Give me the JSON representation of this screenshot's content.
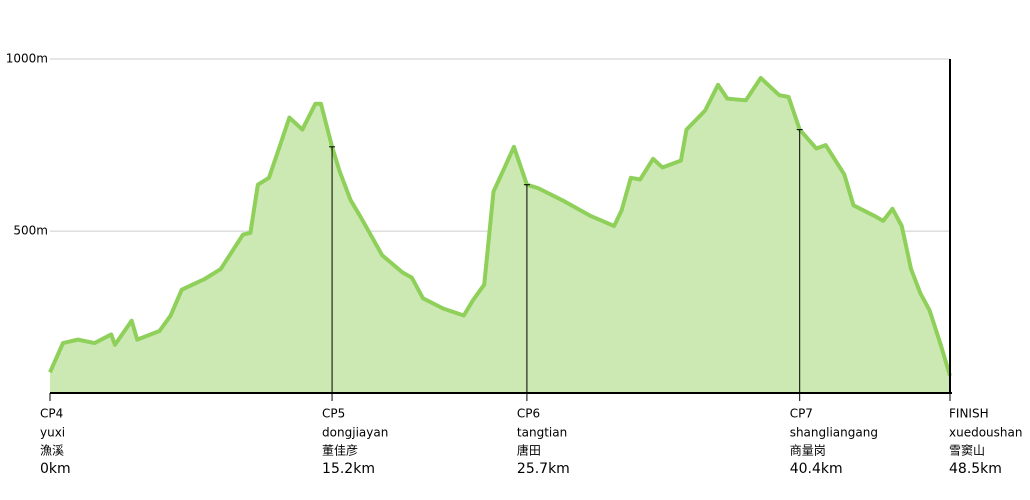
{
  "chart_data": {
    "type": "area",
    "x": [
      0,
      0.7,
      1.5,
      2.4,
      3.3,
      3.5,
      4.4,
      4.7,
      5.9,
      6.5,
      7.1,
      8.3,
      9.2,
      10.4,
      10.8,
      11.2,
      11.8,
      12.4,
      12.9,
      13.6,
      14.3,
      14.6,
      15.2,
      15.6,
      16.2,
      16.7,
      17.9,
      19.0,
      19.5,
      20.1,
      21.2,
      22.3,
      22.8,
      23.4,
      23.9,
      24.5,
      25.0,
      25.7,
      26.3,
      27.6,
      29.1,
      30.4,
      30.8,
      31.3,
      31.8,
      32.5,
      33.0,
      34.0,
      34.3,
      35.3,
      36.0,
      36.5,
      37.5,
      38.3,
      39.3,
      39.8,
      40.4,
      41.3,
      41.8,
      42.8,
      43.3,
      44.4,
      44.9,
      45.4,
      45.9,
      46.4,
      46.9,
      47.4,
      48.0,
      48.5
    ],
    "values": [
      90,
      175,
      185,
      175,
      200,
      170,
      240,
      185,
      210,
      255,
      330,
      360,
      390,
      490,
      495,
      635,
      655,
      750,
      830,
      795,
      870,
      870,
      745,
      675,
      590,
      545,
      430,
      380,
      365,
      305,
      275,
      255,
      300,
      345,
      615,
      685,
      745,
      635,
      625,
      590,
      545,
      515,
      560,
      655,
      650,
      710,
      685,
      705,
      795,
      850,
      925,
      885,
      880,
      945,
      895,
      890,
      795,
      740,
      750,
      665,
      575,
      545,
      530,
      565,
      515,
      390,
      320,
      270,
      170,
      80
    ],
    "color": "#8ed05a",
    "fill": "#cde9b3",
    "xlim": [
      0,
      48.5
    ],
    "ylim": [
      30,
      1000
    ],
    "yticks": [
      {
        "value": 1000,
        "label": "1000m"
      },
      {
        "value": 500,
        "label": "500m"
      }
    ],
    "grid": true,
    "checkpoints": {
      "names": [
        "CP4",
        "CP5",
        "CP6",
        "CP7",
        "FINISH"
      ],
      "places": [
        "yuxi",
        "dongjiayan",
        "tangtian",
        "shangliangang",
        "xuedoushan"
      ],
      "places_cn": [
        "漁溪",
        "董佳彦",
        "唐田",
        "商量岗",
        "雪窦山"
      ],
      "km": [
        0,
        15.2,
        25.7,
        40.4,
        48.5
      ],
      "km_labels": [
        "0km",
        "15.2km",
        "25.7km",
        "40.4km",
        "48.5km"
      ]
    }
  }
}
